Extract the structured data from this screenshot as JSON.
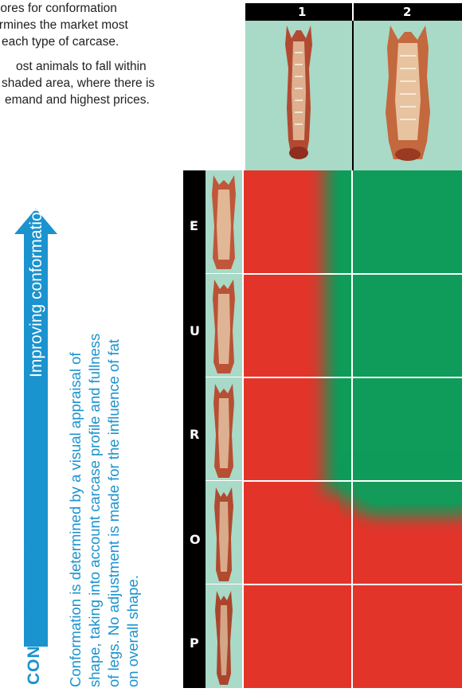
{
  "intro": {
    "line1": "g scores for conformation",
    "line2": "termines the market most",
    "line3": "each type of carcase.",
    "line4": "ost animals to fall within",
    "line5": "shaded area, where there is",
    "line6": "emand and highest prices."
  },
  "columns": [
    "1",
    "2"
  ],
  "rows": [
    "E",
    "U",
    "R",
    "O",
    "P"
  ],
  "arrow_label": "Improving conformation",
  "title": "CONFORMATION",
  "description": [
    "Conformation is determined by a visual appraisal of",
    "shape, taking into account carcase profile and fullness",
    "of legs. No adjustment is made for the influence of fat",
    "on overall shape."
  ],
  "colors": {
    "red": "#e3342a",
    "green": "#0f9b5a",
    "blue": "#1a93cf",
    "panel_bg": "#a9d9c7"
  },
  "grid": {
    "green_cells": [
      {
        "row": "E",
        "column": "2"
      },
      {
        "row": "U",
        "column": "2"
      },
      {
        "row": "R",
        "column": "2"
      },
      {
        "row": "O",
        "column": "2"
      }
    ]
  }
}
